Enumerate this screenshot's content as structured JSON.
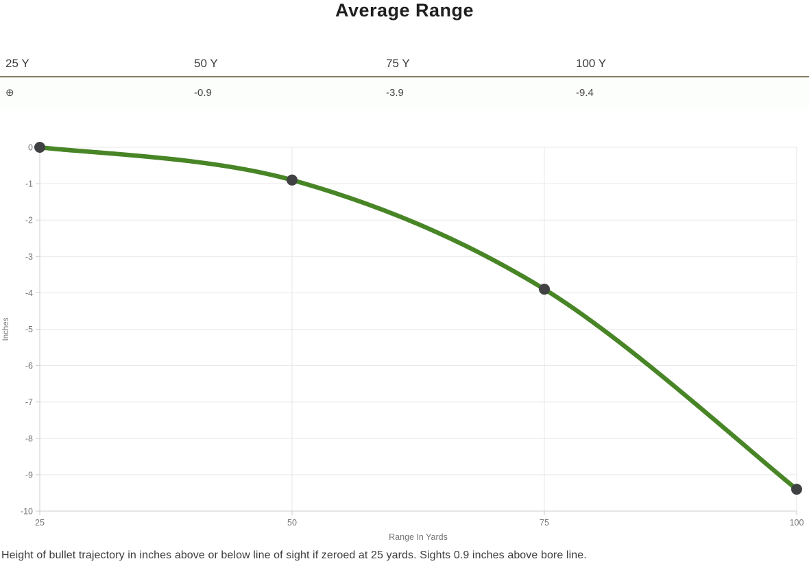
{
  "title": "Average Range",
  "table": {
    "columns": [
      "25 Y",
      "50 Y",
      "75 Y",
      "100 Y"
    ],
    "values": [
      "⊕",
      "-0.9",
      "-3.9",
      "-9.4"
    ]
  },
  "chart_data": {
    "type": "line",
    "series": [
      {
        "name": "Average Range",
        "x": [
          25,
          50,
          75,
          100
        ],
        "y": [
          0,
          -0.9,
          -3.9,
          -9.4
        ]
      }
    ],
    "xlabel": "Range In Yards",
    "ylabel": "Inches",
    "xlim": [
      25,
      100
    ],
    "ylim": [
      -10,
      0
    ],
    "x_ticks": [
      25,
      50,
      75,
      100
    ],
    "y_ticks": [
      0,
      -1,
      -2,
      -3,
      -4,
      -5,
      -6,
      -7,
      -8,
      -9,
      -10
    ],
    "grid": true,
    "legend_position": "none",
    "colors": {
      "line": "#488526",
      "marker": "#3f4142",
      "gridline": "#e7e7e7",
      "axis": "#cccccc",
      "tick_label": "#757575",
      "axis_title": "#757575"
    }
  },
  "caption": "Height of bullet trajectory in inches above or below line of sight if zeroed at 25 yards. Sights 0.9 inches above bore line."
}
